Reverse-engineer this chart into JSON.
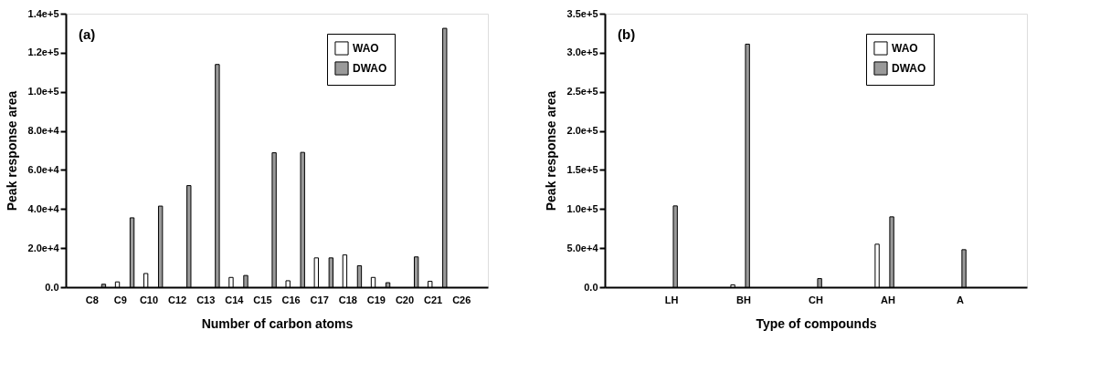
{
  "chart_data": [
    {
      "type": "bar",
      "annotations": [
        "(a)"
      ],
      "xlabel": "Number of carbon atoms",
      "ylabel": "Peak response area",
      "categories": [
        "C8",
        "C9",
        "C10",
        "C12",
        "C13",
        "C14",
        "C15",
        "C16",
        "C17",
        "C18",
        "C19",
        "C20",
        "C21",
        "C26"
      ],
      "series": [
        {
          "name": "WAO",
          "color": "#ffffff",
          "values": [
            null,
            2700,
            7000,
            null,
            null,
            5000,
            null,
            3300,
            15000,
            16500,
            5000,
            null,
            3000,
            null
          ]
        },
        {
          "name": "DWAO",
          "color": "#9a9a9a",
          "values": [
            1500,
            35500,
            41500,
            52000,
            114000,
            6000,
            68800,
            69000,
            15000,
            11000,
            2300,
            15500,
            132500,
            null
          ]
        }
      ],
      "ylim": [
        0,
        140000
      ],
      "yticks": [
        {
          "value": 0,
          "label": "0.0"
        },
        {
          "value": 20000,
          "label": "2.0e+4"
        },
        {
          "value": 40000,
          "label": "4.0e+4"
        },
        {
          "value": 60000,
          "label": "6.0e+4"
        },
        {
          "value": 80000,
          "label": "8.0e+4"
        },
        {
          "value": 100000,
          "label": "1.0e+5"
        },
        {
          "value": 120000,
          "label": "1.2e+5"
        },
        {
          "value": 140000,
          "label": "1.4e+5"
        }
      ],
      "legend": "top right"
    },
    {
      "type": "bar",
      "annotations": [
        "(b)"
      ],
      "xlabel": "Type of compounds",
      "ylabel": "Peak response area",
      "categories": [
        "LH",
        "BH",
        "CH",
        "AH",
        "A"
      ],
      "series": [
        {
          "name": "WAO",
          "color": "#ffffff",
          "values": [
            null,
            3000,
            null,
            55000,
            null
          ]
        },
        {
          "name": "DWAO",
          "color": "#9a9a9a",
          "values": [
            104000,
            311000,
            11000,
            90000,
            48000
          ]
        }
      ],
      "ylim": [
        0,
        350000
      ],
      "yticks": [
        {
          "value": 0,
          "label": "0.0"
        },
        {
          "value": 50000,
          "label": "5.0e+4"
        },
        {
          "value": 100000,
          "label": "1.0e+5"
        },
        {
          "value": 150000,
          "label": "1.5e+5"
        },
        {
          "value": 200000,
          "label": "2.0e+5"
        },
        {
          "value": 250000,
          "label": "2.5e+5"
        },
        {
          "value": 300000,
          "label": "3.0e+5"
        },
        {
          "value": 350000,
          "label": "3.5e+5"
        }
      ],
      "legend": "top right"
    }
  ]
}
